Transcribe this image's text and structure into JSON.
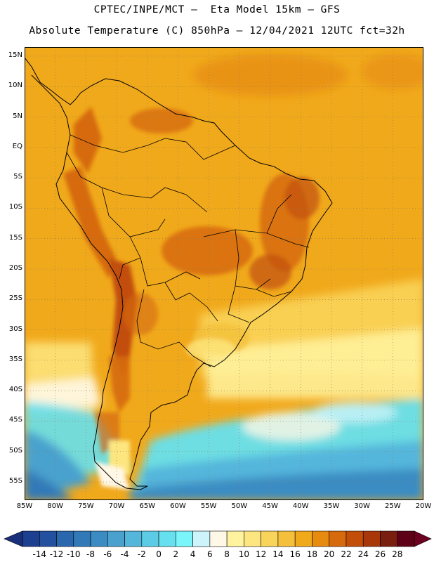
{
  "title_line1": "CPTEC/INPE/MCT –  Eta Model 15km – GFS",
  "title_line2": "Absolute Temperature (C) 850hPa – 12/04/2021 12UTC fct=32h",
  "lat_labels": [
    "15N",
    "10N",
    "5N",
    "EQ",
    "5S",
    "10S",
    "15S",
    "20S",
    "25S",
    "30S",
    "35S",
    "40S",
    "45S",
    "50S",
    "55S"
  ],
  "lat_values": [
    15,
    10,
    5,
    0,
    -5,
    -10,
    -15,
    -20,
    -25,
    -30,
    -35,
    -40,
    -45,
    -50,
    -55
  ],
  "lon_labels": [
    "85W",
    "80W",
    "75W",
    "70W",
    "65W",
    "60W",
    "55W",
    "50W",
    "45W",
    "40W",
    "35W",
    "30W",
    "25W",
    "20W"
  ],
  "lon_values": [
    -85,
    -80,
    -75,
    -70,
    -65,
    -60,
    -55,
    -50,
    -45,
    -40,
    -35,
    -30,
    -25,
    -20
  ],
  "map_extent": {
    "lon_min": -85,
    "lon_max": -20,
    "lat_min": -58,
    "lat_max": 16.5
  },
  "colorbar": {
    "labels": [
      "-14",
      "-12",
      "-10",
      "-8",
      "-6",
      "-4",
      "-2",
      "0",
      "2",
      "4",
      "6",
      "8",
      "10",
      "12",
      "14",
      "16",
      "18",
      "20",
      "22",
      "24",
      "26",
      "28"
    ],
    "colors": [
      "#1c3f8f",
      "#23519f",
      "#2a67ad",
      "#3279b8",
      "#3a8cc2",
      "#4aa1ce",
      "#55b6dc",
      "#5ccce6",
      "#66e0ee",
      "#7af6fa",
      "#ccf4fa",
      "#fff8e6",
      "#fff3a0",
      "#fde680",
      "#f9d45a",
      "#f4c03c",
      "#f1a91c",
      "#e68a10",
      "#d66a0c",
      "#c24e0a",
      "#a8380a",
      "#7a1f10",
      "#5e0018"
    ],
    "low_color": "#1a2f7a",
    "high_color": "#6b0020"
  },
  "zones": {
    "ocean_warm": "#f1a91c",
    "land_base": "#f1a91c",
    "andes_hot": "#c24e0a",
    "interior_hot": "#d66a0c",
    "south_cool": "#fde680",
    "south_cold": "#66e0ee",
    "south_coldest": "#3a8cc2"
  }
}
